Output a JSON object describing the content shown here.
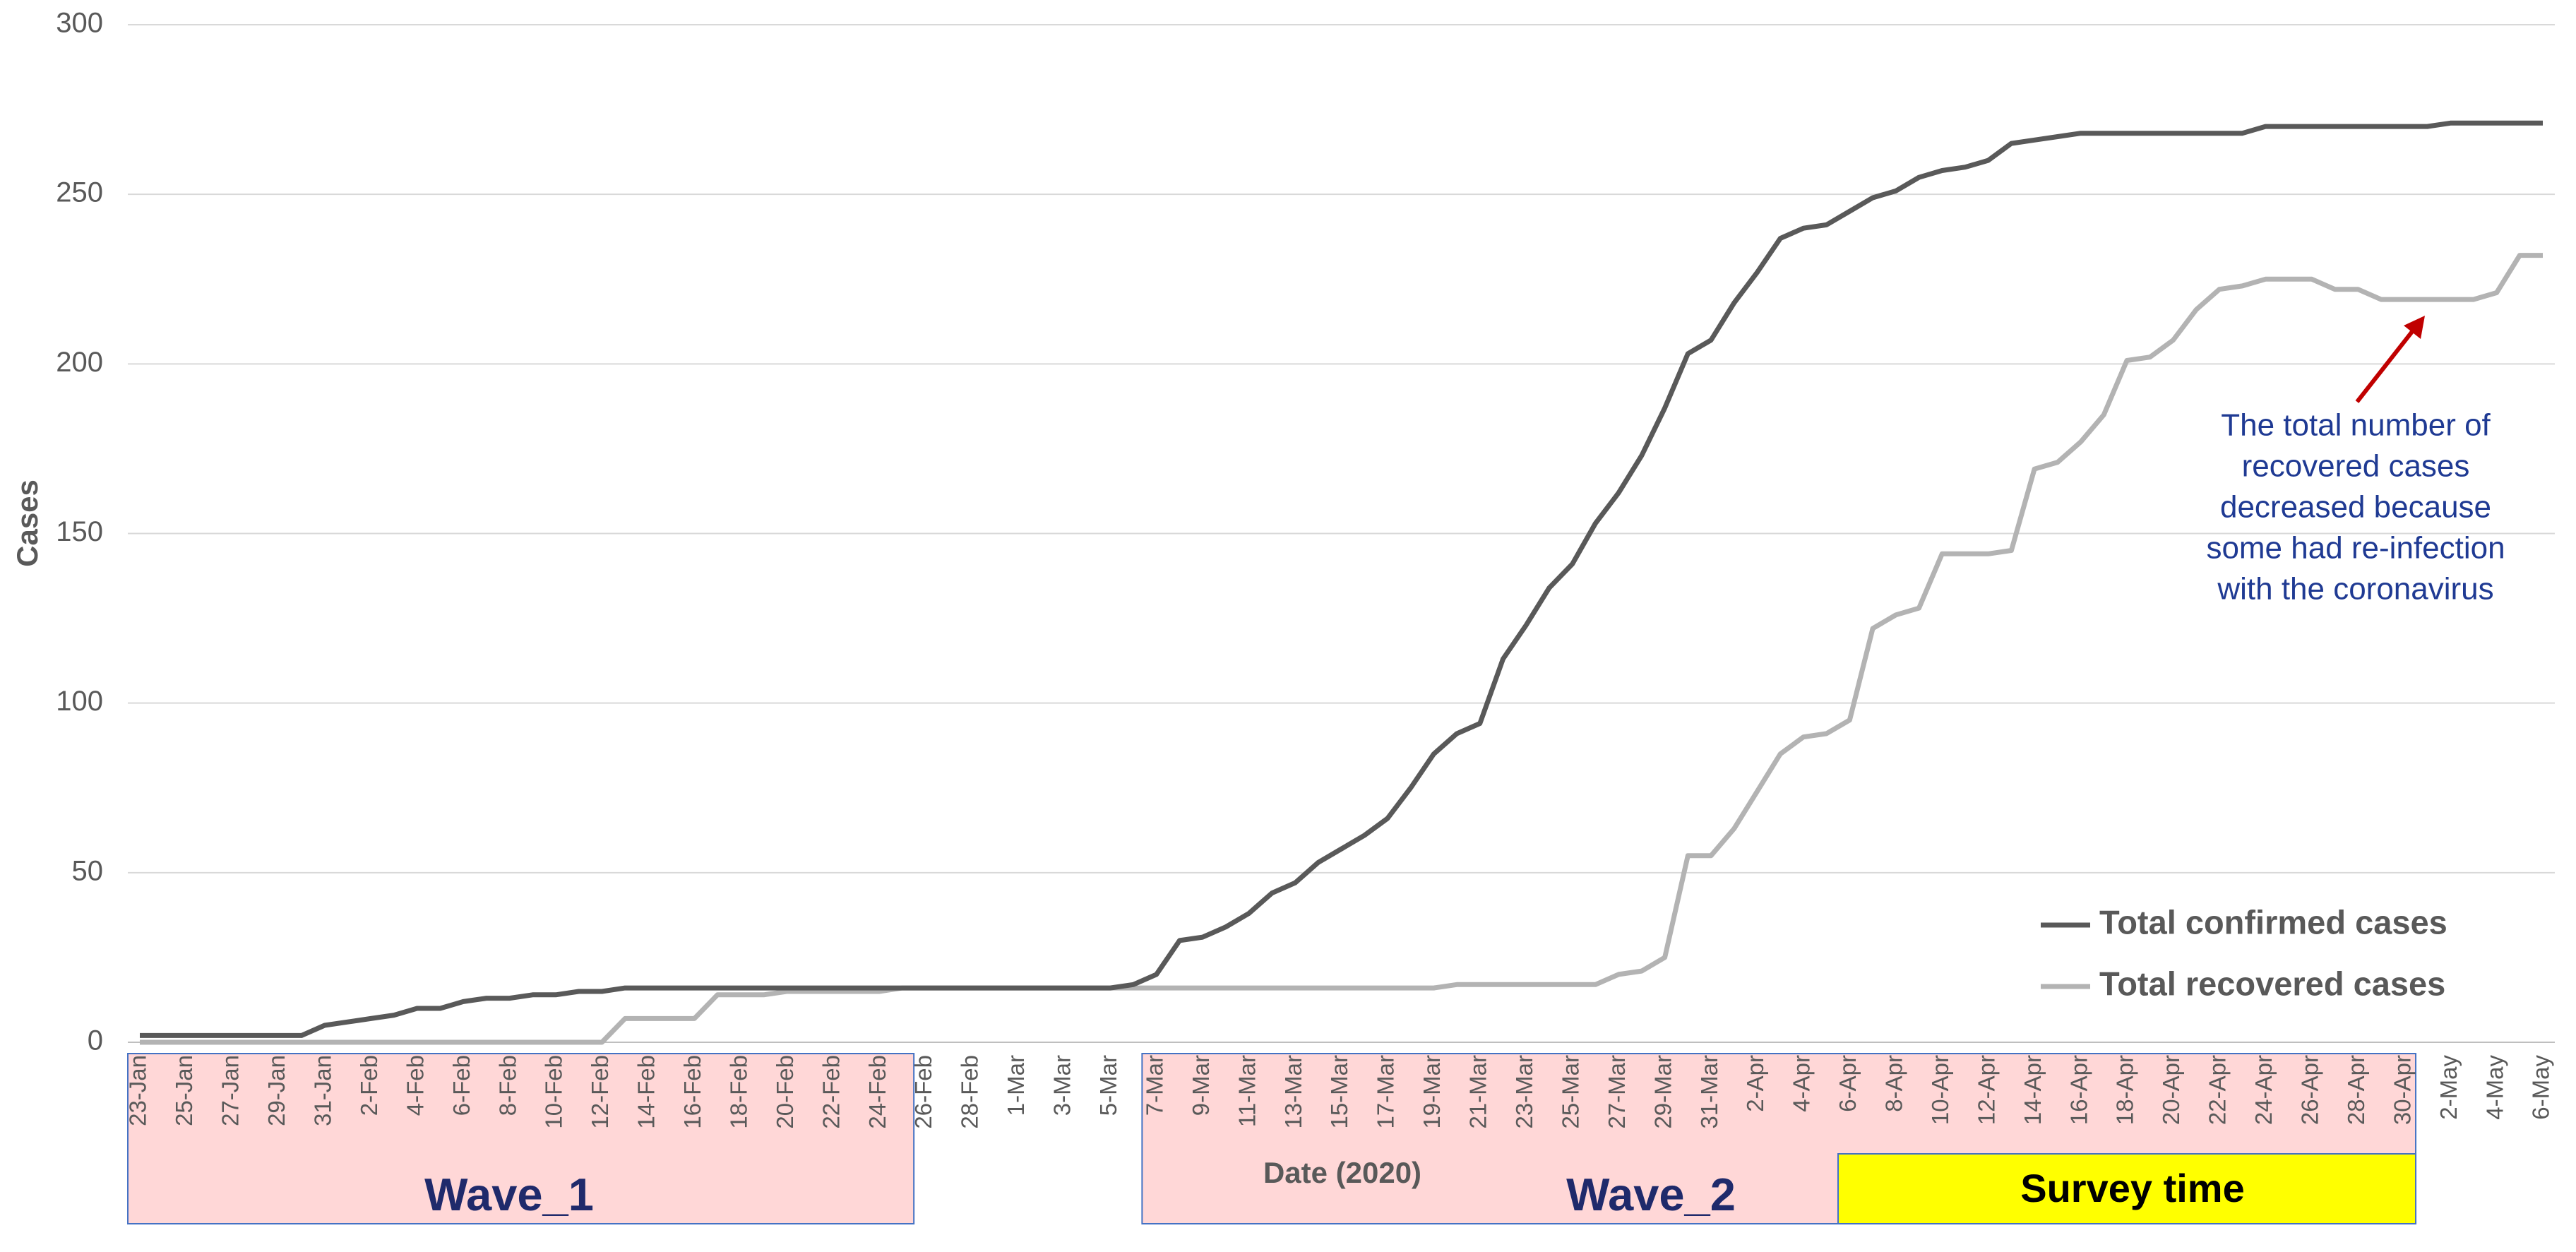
{
  "chart_data": {
    "type": "line",
    "y_label": "Cases",
    "x_label": "Date (2020)",
    "categories": [
      "23-Jan",
      null,
      "25-Jan",
      null,
      "27-Jan",
      null,
      "29-Jan",
      null,
      "31-Jan",
      null,
      "2-Feb",
      null,
      "4-Feb",
      null,
      "6-Feb",
      null,
      "8-Feb",
      null,
      "10-Feb",
      null,
      "12-Feb",
      null,
      "14-Feb",
      null,
      "16-Feb",
      null,
      "18-Feb",
      null,
      "20-Feb",
      null,
      "22-Feb",
      null,
      "24-Feb",
      null,
      "26-Feb",
      null,
      "28-Feb",
      null,
      "1-Mar",
      null,
      "3-Mar",
      null,
      "5-Mar",
      null,
      "7-Mar",
      null,
      "9-Mar",
      null,
      "11-Mar",
      null,
      "13-Mar",
      null,
      "15-Mar",
      null,
      "17-Mar",
      null,
      "19-Mar",
      null,
      "21-Mar",
      null,
      "23-Mar",
      null,
      "25-Mar",
      null,
      "27-Mar",
      null,
      "29-Mar",
      null,
      "31-Mar",
      null,
      "2-Apr",
      null,
      "4-Apr",
      null,
      "6-Apr",
      null,
      "8-Apr",
      null,
      "10-Apr",
      null,
      "12-Apr",
      null,
      "14-Apr",
      null,
      "16-Apr",
      null,
      "18-Apr",
      null,
      "20-Apr",
      null,
      "22-Apr",
      null,
      "24-Apr",
      null,
      "26-Apr",
      null,
      "28-Apr",
      null,
      "30-Apr",
      null,
      "2-May",
      null,
      "4-May",
      null,
      "6-May"
    ],
    "series": [
      {
        "name": "Total confirmed cases",
        "color": "#595959",
        "values": [
          2,
          2,
          2,
          2,
          2,
          2,
          2,
          2,
          5,
          6,
          7,
          8,
          10,
          10,
          12,
          13,
          13,
          14,
          14,
          15,
          15,
          16,
          16,
          16,
          16,
          16,
          16,
          16,
          16,
          16,
          16,
          16,
          16,
          16,
          16,
          16,
          16,
          16,
          16,
          16,
          16,
          16,
          16,
          17,
          20,
          30,
          31,
          34,
          38,
          44,
          47,
          53,
          57,
          61,
          66,
          75,
          85,
          91,
          94,
          113,
          123,
          134,
          141,
          153,
          162,
          173,
          187,
          203,
          207,
          218,
          227,
          237,
          240,
          241,
          245,
          249,
          251,
          255,
          257,
          258,
          260,
          265,
          266,
          267,
          268,
          268,
          268,
          268,
          268,
          268,
          268,
          268,
          270,
          270,
          270,
          270,
          270,
          270,
          270,
          270,
          271,
          271,
          271,
          271,
          271
        ]
      },
      {
        "name": "Total recovered cases",
        "color": "#b3b3b3",
        "values": [
          0,
          0,
          0,
          0,
          0,
          0,
          0,
          0,
          0,
          0,
          0,
          0,
          0,
          0,
          0,
          0,
          0,
          0,
          0,
          0,
          0,
          7,
          7,
          7,
          7,
          14,
          14,
          14,
          15,
          15,
          15,
          15,
          15,
          16,
          16,
          16,
          16,
          16,
          16,
          16,
          16,
          16,
          16,
          16,
          16,
          16,
          16,
          16,
          16,
          16,
          16,
          16,
          16,
          16,
          16,
          16,
          16,
          17,
          17,
          17,
          17,
          17,
          17,
          17,
          20,
          21,
          25,
          55,
          55,
          63,
          74,
          85,
          90,
          91,
          95,
          122,
          126,
          128,
          144,
          144,
          144,
          145,
          169,
          171,
          177,
          185,
          201,
          202,
          207,
          216,
          222,
          223,
          225,
          225,
          225,
          222,
          222,
          219,
          219,
          219,
          219,
          219,
          221,
          232,
          232
        ]
      }
    ],
    "ylim": [
      0,
      300
    ],
    "yticks": [
      0,
      50,
      100,
      150,
      200,
      250,
      300
    ],
    "grid": true,
    "legend": "lower right",
    "regions": [
      "Wave_1",
      "Wave_2",
      "Survey time"
    ],
    "annotation": [
      "The total number of",
      "recovered cases",
      "decreased because",
      "some had re-infection",
      "with the coronavirus"
    ]
  }
}
